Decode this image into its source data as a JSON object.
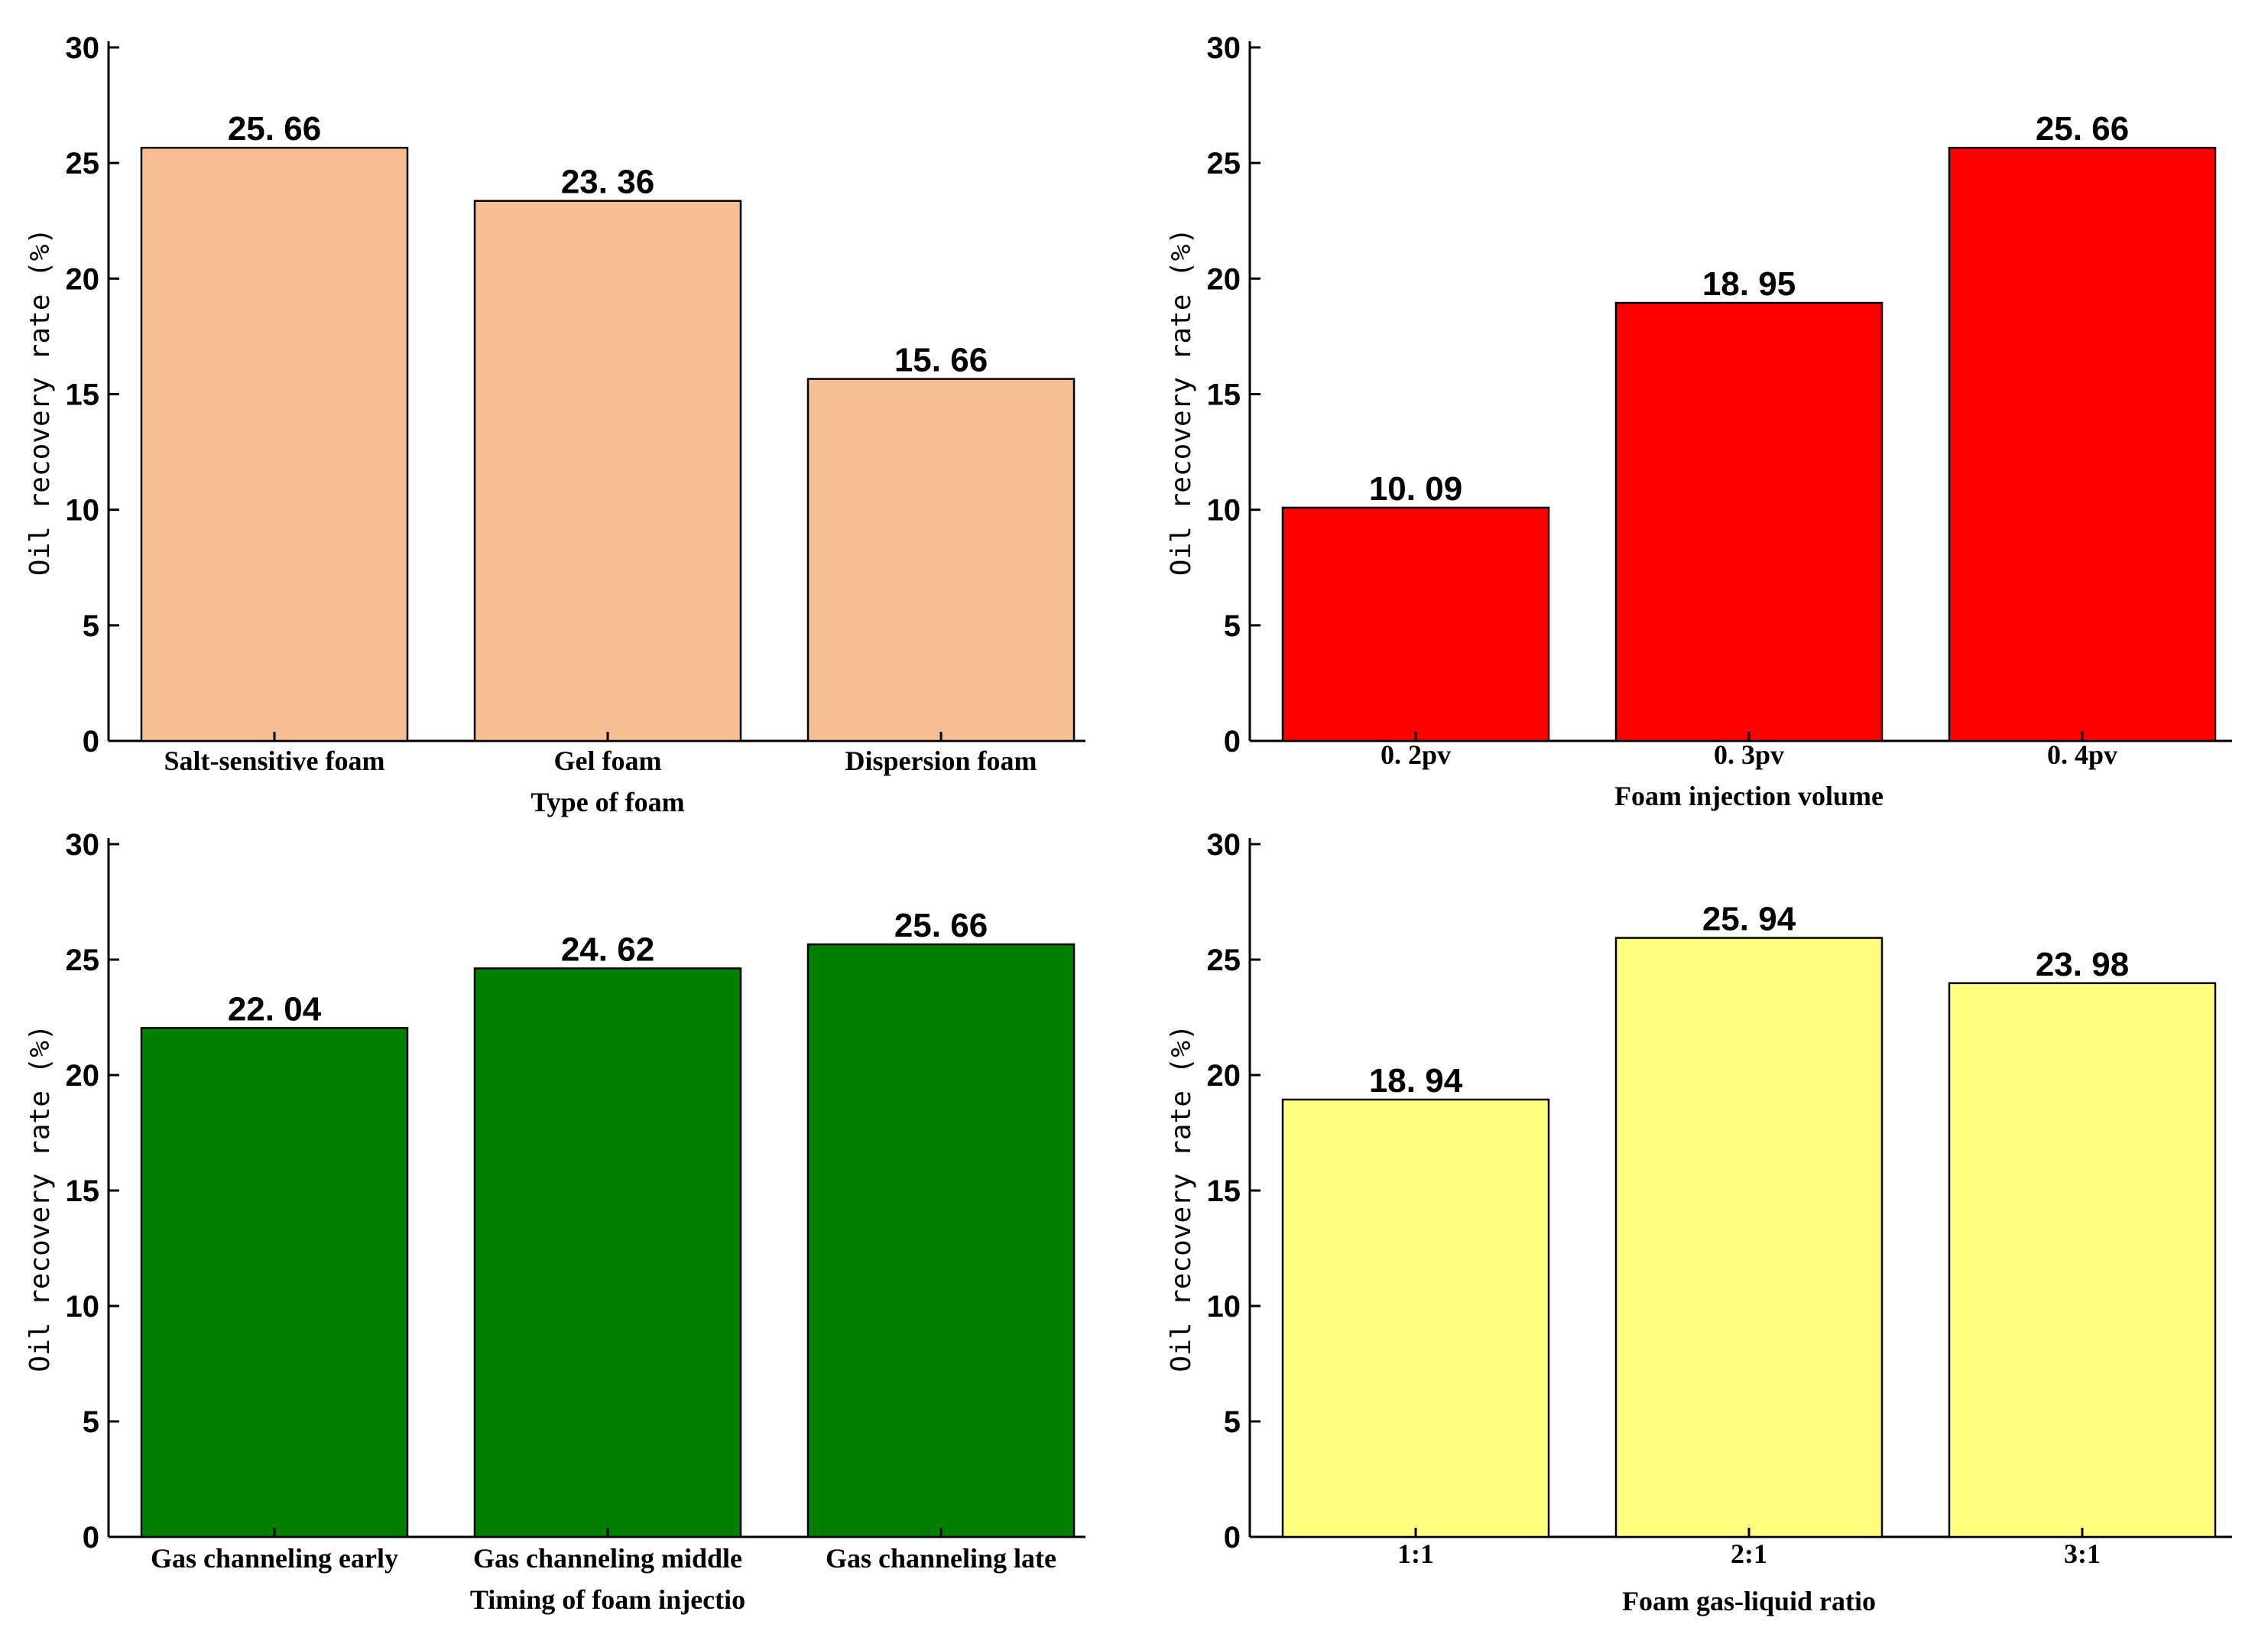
{
  "chart_data": [
    {
      "type": "bar",
      "categories": [
        "Salt-sensitive foam",
        "Gel foam",
        "Dispersion foam"
      ],
      "values": [
        25.66,
        23.36,
        15.66
      ],
      "data_labels": [
        "25. 66",
        "23. 36",
        "15. 66"
      ],
      "xlabel": "Type of foam",
      "ylabel": "Oil recovery rate (%)",
      "ylim": [
        0,
        30
      ],
      "yticks": [
        "0",
        "5",
        "10",
        "15",
        "20",
        "25",
        "30"
      ],
      "bar_color": "#F7BE94",
      "grid": false
    },
    {
      "type": "bar",
      "categories": [
        "0. 2pv",
        "0. 3pv",
        "0. 4pv"
      ],
      "values": [
        10.09,
        18.95,
        25.66
      ],
      "data_labels": [
        "10. 09",
        "18. 95",
        "25. 66"
      ],
      "xlabel": "Foam injection volume",
      "ylabel": "Oil recovery rate (%)",
      "ylim": [
        0,
        30
      ],
      "yticks": [
        "0",
        "5",
        "10",
        "15",
        "20",
        "25",
        "30"
      ],
      "bar_color": "#FF0000",
      "grid": false
    },
    {
      "type": "bar",
      "categories": [
        "Gas channeling early",
        "Gas channeling middle",
        "Gas channeling late"
      ],
      "values": [
        22.04,
        24.62,
        25.66
      ],
      "data_labels": [
        "22. 04",
        "24. 62",
        "25. 66"
      ],
      "xlabel": "Timing of foam injectio",
      "ylabel": "Oil recovery rate (%)",
      "ylim": [
        0,
        30
      ],
      "yticks": [
        "0",
        "5",
        "10",
        "15",
        "20",
        "25",
        "30"
      ],
      "bar_color": "#008000",
      "grid": false
    },
    {
      "type": "bar",
      "categories": [
        "1:1",
        "2:1",
        "3:1"
      ],
      "values": [
        18.94,
        25.94,
        23.98
      ],
      "data_labels": [
        "18. 94",
        "25. 94",
        "23. 98"
      ],
      "xlabel": "Foam gas-liquid ratio",
      "ylabel": "Oil recovery rate (%)",
      "ylim": [
        0,
        30
      ],
      "yticks": [
        "0",
        "5",
        "10",
        "15",
        "20",
        "25",
        "30"
      ],
      "bar_color": "#FFFF80",
      "grid": false
    }
  ]
}
